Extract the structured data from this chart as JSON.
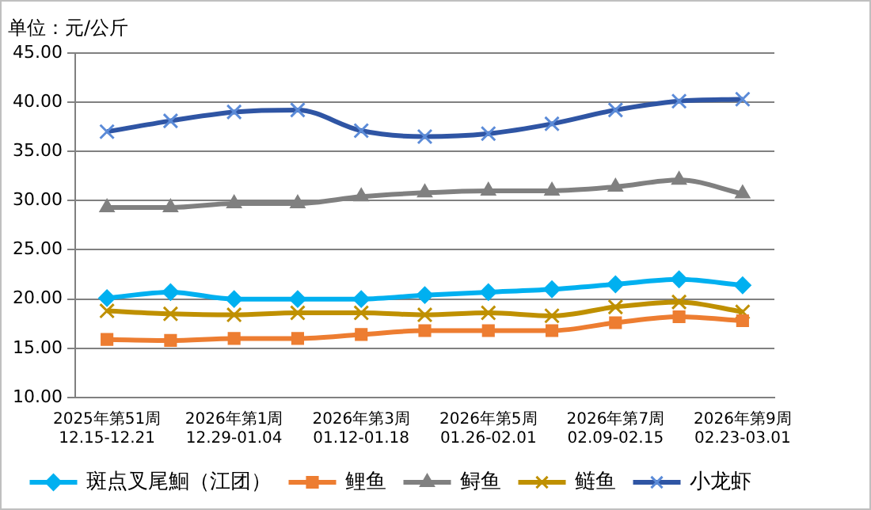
{
  "chart_data": {
    "type": "line",
    "title": "单位：元/公斤",
    "categories": [
      "2025年第51周\n12.15-12.21",
      null,
      "2026年第1周\n12.29-01.04",
      null,
      "2026年第3周\n01.12-01.18",
      null,
      "2026年第5周\n01.26-02.01",
      null,
      "2026年第7周\n02.09-02.15",
      null,
      "2026年第9周\n02.23-03.01"
    ],
    "series": [
      {
        "name": "斑点叉尾鮰（江团）",
        "color": "#00b0f0",
        "marker": "diamond",
        "values": [
          20.1,
          20.7,
          20.0,
          20.0,
          20.0,
          20.4,
          20.7,
          21.0,
          21.5,
          22.0,
          21.4
        ]
      },
      {
        "name": "鲤鱼",
        "color": "#ed7d31",
        "marker": "square",
        "values": [
          15.9,
          15.8,
          16.0,
          16.0,
          16.4,
          16.8,
          16.8,
          16.8,
          17.6,
          18.2,
          17.8
        ]
      },
      {
        "name": "鲟鱼",
        "color": "#808080",
        "marker": "triangle",
        "values": [
          29.3,
          29.3,
          29.7,
          29.7,
          30.4,
          30.8,
          31.0,
          31.0,
          31.4,
          32.1,
          30.7
        ]
      },
      {
        "name": "鲢鱼",
        "color": "#bf9000",
        "marker": "cross",
        "values": [
          18.8,
          18.5,
          18.4,
          18.6,
          18.6,
          18.4,
          18.6,
          18.3,
          19.2,
          19.7,
          18.7
        ]
      },
      {
        "name": "小龙虾",
        "color": "#2f55a4",
        "marker": "cross",
        "values": [
          37.0,
          38.1,
          39.0,
          39.2,
          37.1,
          36.5,
          36.8,
          37.8,
          39.2,
          40.1,
          40.3
        ]
      }
    ],
    "ylim": [
      10,
      45
    ],
    "yticks": [
      {
        "value": 10,
        "label": "10.00"
      },
      {
        "value": 15,
        "label": "15.00"
      },
      {
        "value": 20,
        "label": "20.00"
      },
      {
        "value": 25,
        "label": "25.00"
      },
      {
        "value": 30,
        "label": "30.00"
      },
      {
        "value": 35,
        "label": "35.00"
      },
      {
        "value": 40,
        "label": "40.00"
      },
      {
        "value": 45,
        "label": "45.00"
      }
    ],
    "grid": "y",
    "legend": "bottom"
  }
}
